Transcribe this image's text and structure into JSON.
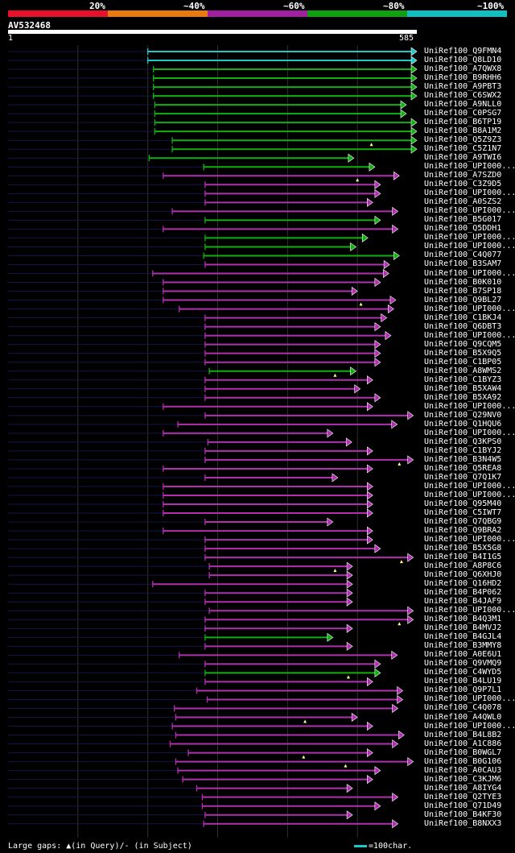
{
  "scale": {
    "labels": [
      "20%",
      "~40%",
      "~60%",
      "~80%",
      "~100%"
    ],
    "colors": [
      "#e8102a",
      "#e87a10",
      "#a020a0",
      "#10a010",
      "#10c0c0"
    ]
  },
  "query": {
    "name": "AV532468",
    "start": "1",
    "end": "585",
    "length": 585
  },
  "colors": {
    "cyan": "#1ec8c8",
    "green": "#10b010",
    "magenta": "#b030b0",
    "line": "#15154a",
    "grid": "#303030"
  },
  "hits": [
    {
      "label": "UniRef100_Q9FMN4",
      "color": "cyan",
      "qs": 200,
      "bs": 200,
      "be": 585,
      "mark": null
    },
    {
      "label": "UniRef100_Q8LD10",
      "color": "cyan",
      "qs": 200,
      "bs": 200,
      "be": 585,
      "mark": null
    },
    {
      "label": "UniRef100_A7QWX8",
      "color": "green",
      "qs": 208,
      "bs": 208,
      "be": 585,
      "mark": null
    },
    {
      "label": "UniRef100_B9RHH6",
      "color": "green",
      "qs": 208,
      "bs": 208,
      "be": 585,
      "mark": null
    },
    {
      "label": "UniRef100_A9PBT3",
      "color": "green",
      "qs": 208,
      "bs": 208,
      "be": 585,
      "mark": null
    },
    {
      "label": "UniRef100_C6SWX2",
      "color": "green",
      "qs": 208,
      "bs": 208,
      "be": 585,
      "mark": null
    },
    {
      "label": "UniRef100_A9NLL0",
      "color": "green",
      "qs": 210,
      "bs": 210,
      "be": 570,
      "mark": null
    },
    {
      "label": "UniRef100_C0PSG7",
      "color": "green",
      "qs": 210,
      "bs": 210,
      "be": 570,
      "mark": null
    },
    {
      "label": "UniRef100_B6TP19",
      "color": "green",
      "qs": 210,
      "bs": 210,
      "be": 585,
      "mark": null
    },
    {
      "label": "UniRef100_B8A1M2",
      "color": "green",
      "qs": 210,
      "bs": 210,
      "be": 585,
      "mark": null
    },
    {
      "label": "UniRef100_Q5Z9Z3",
      "color": "green",
      "qs": 235,
      "bs": 235,
      "be": 585,
      "mark": 520
    },
    {
      "label": "UniRef100_C5Z1N7",
      "color": "green",
      "qs": 235,
      "bs": 235,
      "be": 585,
      "mark": null
    },
    {
      "label": "UniRef100_A9TWI6",
      "color": "green",
      "qs": 202,
      "bs": 202,
      "be": 495,
      "mark": null
    },
    {
      "label": "UniRef100_UPI000...",
      "color": "green",
      "qs": 280,
      "bs": 280,
      "be": 525,
      "mark": null
    },
    {
      "label": "UniRef100_A7SZD0",
      "color": "magenta",
      "qs": 222,
      "bs": 222,
      "be": 560,
      "mark": 500
    },
    {
      "label": "UniRef100_C3Z9D5",
      "color": "magenta",
      "qs": 282,
      "bs": 282,
      "be": 533,
      "mark": null
    },
    {
      "label": "UniRef100_UPI000...",
      "color": "magenta",
      "qs": 282,
      "bs": 282,
      "be": 533,
      "mark": null
    },
    {
      "label": "UniRef100_A0SZS2",
      "color": "magenta",
      "qs": 282,
      "bs": 282,
      "be": 522,
      "mark": null
    },
    {
      "label": "UniRef100_UPI000...",
      "color": "magenta",
      "qs": 235,
      "bs": 235,
      "be": 558,
      "mark": null
    },
    {
      "label": "UniRef100_B5G017",
      "color": "green",
      "qs": 282,
      "bs": 282,
      "be": 533,
      "mark": null
    },
    {
      "label": "UniRef100_Q5DDH1",
      "color": "magenta",
      "qs": 222,
      "bs": 222,
      "be": 558,
      "mark": null
    },
    {
      "label": "UniRef100_UPI000...",
      "color": "green",
      "qs": 282,
      "bs": 282,
      "be": 515,
      "mark": null
    },
    {
      "label": "UniRef100_UPI000...",
      "color": "green",
      "qs": 282,
      "bs": 282,
      "be": 498,
      "mark": null
    },
    {
      "label": "UniRef100_C4Q077",
      "color": "green",
      "qs": 280,
      "bs": 280,
      "be": 560,
      "mark": null
    },
    {
      "label": "UniRef100_B3SAM7",
      "color": "magenta",
      "qs": 282,
      "bs": 282,
      "be": 546,
      "mark": null
    },
    {
      "label": "UniRef100_UPI000...",
      "color": "magenta",
      "qs": 207,
      "bs": 207,
      "be": 545,
      "mark": null
    },
    {
      "label": "UniRef100_B0K010",
      "color": "magenta",
      "qs": 222,
      "bs": 222,
      "be": 533,
      "mark": null
    },
    {
      "label": "UniRef100_B7SP18",
      "color": "magenta",
      "qs": 222,
      "bs": 222,
      "be": 500,
      "mark": null
    },
    {
      "label": "UniRef100_Q9BL27",
      "color": "magenta",
      "qs": 222,
      "bs": 222,
      "be": 555,
      "mark": 505
    },
    {
      "label": "UniRef100_UPI000...",
      "color": "magenta",
      "qs": 245,
      "bs": 245,
      "be": 552,
      "mark": null
    },
    {
      "label": "UniRef100_C1BKJ4",
      "color": "magenta",
      "qs": 282,
      "bs": 282,
      "be": 542,
      "mark": null
    },
    {
      "label": "UniRef100_Q6DBT3",
      "color": "magenta",
      "qs": 282,
      "bs": 282,
      "be": 533,
      "mark": null
    },
    {
      "label": "UniRef100_UPI000...",
      "color": "magenta",
      "qs": 282,
      "bs": 282,
      "be": 548,
      "mark": null
    },
    {
      "label": "UniRef100_Q9CQM5",
      "color": "magenta",
      "qs": 282,
      "bs": 282,
      "be": 533,
      "mark": null
    },
    {
      "label": "UniRef100_B5X9Q5",
      "color": "magenta",
      "qs": 282,
      "bs": 282,
      "be": 533,
      "mark": null
    },
    {
      "label": "UniRef100_C1BP05",
      "color": "magenta",
      "qs": 282,
      "bs": 282,
      "be": 533,
      "mark": null
    },
    {
      "label": "UniRef100_A8WMS2",
      "color": "green",
      "qs": 288,
      "bs": 288,
      "be": 498,
      "mark": 468
    },
    {
      "label": "UniRef100_C1BYZ3",
      "color": "magenta",
      "qs": 282,
      "bs": 282,
      "be": 522,
      "mark": null
    },
    {
      "label": "UniRef100_B5XAW4",
      "color": "magenta",
      "qs": 282,
      "bs": 282,
      "be": 504,
      "mark": null
    },
    {
      "label": "UniRef100_B5XA92",
      "color": "magenta",
      "qs": 282,
      "bs": 282,
      "be": 533,
      "mark": null
    },
    {
      "label": "UniRef100_UPI000...",
      "color": "magenta",
      "qs": 222,
      "bs": 222,
      "be": 522,
      "mark": null
    },
    {
      "label": "UniRef100_Q29NV0",
      "color": "magenta",
      "qs": 282,
      "bs": 282,
      "be": 580,
      "mark": null
    },
    {
      "label": "UniRef100_Q1HQU6",
      "color": "magenta",
      "qs": 243,
      "bs": 243,
      "be": 557,
      "mark": null
    },
    {
      "label": "UniRef100_UPI000...",
      "color": "magenta",
      "qs": 222,
      "bs": 222,
      "be": 465,
      "mark": null
    },
    {
      "label": "UniRef100_Q3KPS0",
      "color": "magenta",
      "qs": 286,
      "bs": 286,
      "be": 492,
      "mark": null
    },
    {
      "label": "UniRef100_C1BYJ2",
      "color": "magenta",
      "qs": 282,
      "bs": 282,
      "be": 522,
      "mark": null
    },
    {
      "label": "UniRef100_B3N4W5",
      "color": "magenta",
      "qs": 282,
      "bs": 282,
      "be": 580,
      "mark": 560
    },
    {
      "label": "UniRef100_Q5REA8",
      "color": "magenta",
      "qs": 222,
      "bs": 222,
      "be": 522,
      "mark": null
    },
    {
      "label": "UniRef100_Q7Q1K7",
      "color": "magenta",
      "qs": 282,
      "bs": 282,
      "be": 472,
      "mark": null
    },
    {
      "label": "UniRef100_UPI000...",
      "color": "magenta",
      "qs": 222,
      "bs": 222,
      "be": 522,
      "mark": null
    },
    {
      "label": "UniRef100_UPI000...",
      "color": "magenta",
      "qs": 222,
      "bs": 222,
      "be": 522,
      "mark": null
    },
    {
      "label": "UniRef100_Q95M40",
      "color": "magenta",
      "qs": 222,
      "bs": 222,
      "be": 522,
      "mark": null
    },
    {
      "label": "UniRef100_C5IWT7",
      "color": "magenta",
      "qs": 222,
      "bs": 222,
      "be": 522,
      "mark": null
    },
    {
      "label": "UniRef100_Q7QBG9",
      "color": "magenta",
      "qs": 282,
      "bs": 282,
      "be": 465,
      "mark": null
    },
    {
      "label": "UniRef100_Q9BRA2",
      "color": "magenta",
      "qs": 222,
      "bs": 222,
      "be": 522,
      "mark": null
    },
    {
      "label": "UniRef100_UPI000...",
      "color": "magenta",
      "qs": 282,
      "bs": 282,
      "be": 522,
      "mark": null
    },
    {
      "label": "UniRef100_B5X5G8",
      "color": "magenta",
      "qs": 282,
      "bs": 282,
      "be": 533,
      "mark": null
    },
    {
      "label": "UniRef100_B4I1G5",
      "color": "magenta",
      "qs": 282,
      "bs": 282,
      "be": 580,
      "mark": 563
    },
    {
      "label": "UniRef100_A8P8C6",
      "color": "magenta",
      "qs": 288,
      "bs": 288,
      "be": 493,
      "mark": 468
    },
    {
      "label": "UniRef100_Q6XHJ0",
      "color": "magenta",
      "qs": 288,
      "bs": 288,
      "be": 493,
      "mark": null
    },
    {
      "label": "UniRef100_Q16HD2",
      "color": "magenta",
      "qs": 207,
      "bs": 207,
      "be": 493,
      "mark": null
    },
    {
      "label": "UniRef100_B4P062",
      "color": "magenta",
      "qs": 282,
      "bs": 282,
      "be": 493,
      "mark": null
    },
    {
      "label": "UniRef100_B4JAF9",
      "color": "magenta",
      "qs": 282,
      "bs": 282,
      "be": 493,
      "mark": null
    },
    {
      "label": "UniRef100_UPI000...",
      "color": "magenta",
      "qs": 288,
      "bs": 288,
      "be": 580,
      "mark": null
    },
    {
      "label": "UniRef100_B4Q3M1",
      "color": "magenta",
      "qs": 282,
      "bs": 282,
      "be": 580,
      "mark": 560
    },
    {
      "label": "UniRef100_B4MVJ2",
      "color": "magenta",
      "qs": 282,
      "bs": 282,
      "be": 493,
      "mark": null
    },
    {
      "label": "UniRef100_B4GJL4",
      "color": "green",
      "qs": 282,
      "bs": 282,
      "be": 465,
      "mark": null
    },
    {
      "label": "UniRef100_B3MMY8",
      "color": "magenta",
      "qs": 282,
      "bs": 282,
      "be": 493,
      "mark": null
    },
    {
      "label": "UniRef100_A0E6U1",
      "color": "magenta",
      "qs": 245,
      "bs": 245,
      "be": 557,
      "mark": null
    },
    {
      "label": "UniRef100_Q9VMQ9",
      "color": "magenta",
      "qs": 282,
      "bs": 282,
      "be": 533,
      "mark": null
    },
    {
      "label": "UniRef100_C4WYD5",
      "color": "green",
      "qs": 282,
      "bs": 282,
      "be": 533,
      "mark": 487
    },
    {
      "label": "UniRef100_B4LU19",
      "color": "magenta",
      "qs": 282,
      "bs": 282,
      "be": 522,
      "mark": null
    },
    {
      "label": "UniRef100_Q9P7L1",
      "color": "magenta",
      "qs": 270,
      "bs": 270,
      "be": 565,
      "mark": null
    },
    {
      "label": "UniRef100_UPI000...",
      "color": "magenta",
      "qs": 285,
      "bs": 285,
      "be": 565,
      "mark": null
    },
    {
      "label": "UniRef100_C4Q078",
      "color": "magenta",
      "qs": 238,
      "bs": 238,
      "be": 558,
      "mark": null
    },
    {
      "label": "UniRef100_A4QWL0",
      "color": "magenta",
      "qs": 240,
      "bs": 240,
      "be": 500,
      "mark": 425
    },
    {
      "label": "UniRef100_UPI000...",
      "color": "magenta",
      "qs": 235,
      "bs": 235,
      "be": 522,
      "mark": null
    },
    {
      "label": "UniRef100_B4L8B2",
      "color": "magenta",
      "qs": 240,
      "bs": 240,
      "be": 567,
      "mark": null
    },
    {
      "label": "UniRef100_A1C886",
      "color": "magenta",
      "qs": 232,
      "bs": 232,
      "be": 558,
      "mark": null
    },
    {
      "label": "UniRef100_B0WGL7",
      "color": "magenta",
      "qs": 258,
      "bs": 258,
      "be": 522,
      "mark": 423
    },
    {
      "label": "UniRef100_B0G106",
      "color": "magenta",
      "qs": 240,
      "bs": 240,
      "be": 580,
      "mark": 483
    },
    {
      "label": "UniRef100_A0CAU3",
      "color": "magenta",
      "qs": 243,
      "bs": 243,
      "be": 533,
      "mark": null
    },
    {
      "label": "UniRef100_C3KJM6",
      "color": "magenta",
      "qs": 250,
      "bs": 250,
      "be": 522,
      "mark": null
    },
    {
      "label": "UniRef100_A8IYG4",
      "color": "magenta",
      "qs": 270,
      "bs": 270,
      "be": 493,
      "mark": null
    },
    {
      "label": "UniRef100_Q2TYE3",
      "color": "magenta",
      "qs": 278,
      "bs": 278,
      "be": 558,
      "mark": null
    },
    {
      "label": "UniRef100_Q71D49",
      "color": "magenta",
      "qs": 278,
      "bs": 278,
      "be": 533,
      "mark": null
    },
    {
      "label": "UniRef100_B4KF30",
      "color": "magenta",
      "qs": 282,
      "bs": 282,
      "be": 493,
      "mark": null
    },
    {
      "label": "UniRef100_B8NXX3",
      "color": "magenta",
      "qs": 280,
      "bs": 280,
      "be": 558,
      "mark": null
    }
  ],
  "legend": {
    "gaps_text": "Large gaps: ▲(in Query)/- (in Subject)",
    "scale_text": "=100char."
  }
}
